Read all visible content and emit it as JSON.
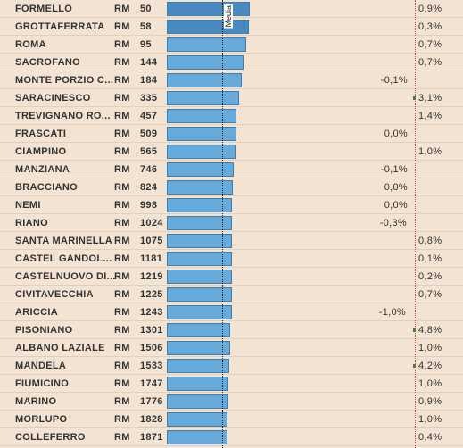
{
  "chart_data": {
    "type": "bar",
    "reference_line_label": "Media",
    "colors": {
      "top_bars": "#4a8ac0",
      "bars": "#67a9d8",
      "bar_border": "#3d7eb0",
      "positive_marker": "#2c8a3a",
      "zero_line": "#c94b4b"
    },
    "rows": [
      {
        "name": "FORMELLO",
        "prov": "RM",
        "rank": "50",
        "change": "0,9%",
        "value": 0.9
      },
      {
        "name": "GROTTAFERRATA",
        "prov": "RM",
        "rank": "58",
        "change": "0,3%",
        "value": 0.3
      },
      {
        "name": "ROMA",
        "prov": "RM",
        "rank": "95",
        "change": "0,7%",
        "value": 0.7
      },
      {
        "name": "SACROFANO",
        "prov": "RM",
        "rank": "144",
        "change": "0,7%",
        "value": 0.7
      },
      {
        "name": "MONTE PORZIO C...",
        "prov": "RM",
        "rank": "184",
        "change": "-0,1%",
        "value": -0.1
      },
      {
        "name": "SARACINESCO",
        "prov": "RM",
        "rank": "335",
        "change": "3,1%",
        "value": 3.1
      },
      {
        "name": "TREVIGNANO RO...",
        "prov": "RM",
        "rank": "457",
        "change": "1,4%",
        "value": 1.4
      },
      {
        "name": "FRASCATI",
        "prov": "RM",
        "rank": "509",
        "change": "0,0%",
        "value": 0.0
      },
      {
        "name": "CIAMPINO",
        "prov": "RM",
        "rank": "565",
        "change": "1,0%",
        "value": 1.0
      },
      {
        "name": "MANZIANA",
        "prov": "RM",
        "rank": "746",
        "change": "-0,1%",
        "value": -0.1
      },
      {
        "name": "BRACCIANO",
        "prov": "RM",
        "rank": "824",
        "change": "0,0%",
        "value": 0.0
      },
      {
        "name": "NEMI",
        "prov": "RM",
        "rank": "998",
        "change": "0,0%",
        "value": 0.0
      },
      {
        "name": "RIANO",
        "prov": "RM",
        "rank": "1024",
        "change": "-0,3%",
        "value": -0.3
      },
      {
        "name": "SANTA MARINELLA",
        "prov": "RM",
        "rank": "1075",
        "change": "0,8%",
        "value": 0.8
      },
      {
        "name": "CASTEL GANDOL...",
        "prov": "RM",
        "rank": "1181",
        "change": "0,1%",
        "value": 0.1
      },
      {
        "name": "CASTELNUOVO DI...",
        "prov": "RM",
        "rank": "1219",
        "change": "0,2%",
        "value": 0.2
      },
      {
        "name": "CIVITAVECCHIA",
        "prov": "RM",
        "rank": "1225",
        "change": "0,7%",
        "value": 0.7
      },
      {
        "name": "ARICCIA",
        "prov": "RM",
        "rank": "1243",
        "change": "-1,0%",
        "value": -1.0
      },
      {
        "name": "PISONIANO",
        "prov": "RM",
        "rank": "1301",
        "change": "4,8%",
        "value": 4.8
      },
      {
        "name": "ALBANO LAZIALE",
        "prov": "RM",
        "rank": "1506",
        "change": "1,0%",
        "value": 1.0
      },
      {
        "name": "MANDELA",
        "prov": "RM",
        "rank": "1533",
        "change": "4,2%",
        "value": 4.2
      },
      {
        "name": "FIUMICINO",
        "prov": "RM",
        "rank": "1747",
        "change": "1,0%",
        "value": 1.0
      },
      {
        "name": "MARINO",
        "prov": "RM",
        "rank": "1776",
        "change": "0,9%",
        "value": 0.9
      },
      {
        "name": "MORLUPO",
        "prov": "RM",
        "rank": "1828",
        "change": "1,0%",
        "value": 1.0
      },
      {
        "name": "COLLEFERRO",
        "prov": "RM",
        "rank": "1871",
        "change": "0,4%",
        "value": 0.4
      }
    ],
    "bar_values": [
      1.5,
      1.48,
      1.43,
      1.38,
      1.36,
      1.3,
      1.26,
      1.25,
      1.24,
      1.21,
      1.2,
      1.18,
      1.18,
      1.18,
      1.17,
      1.17,
      1.17,
      1.17,
      1.15,
      1.14,
      1.13,
      1.11,
      1.11,
      1.1,
      1.1
    ],
    "reference_value": 1.0
  }
}
